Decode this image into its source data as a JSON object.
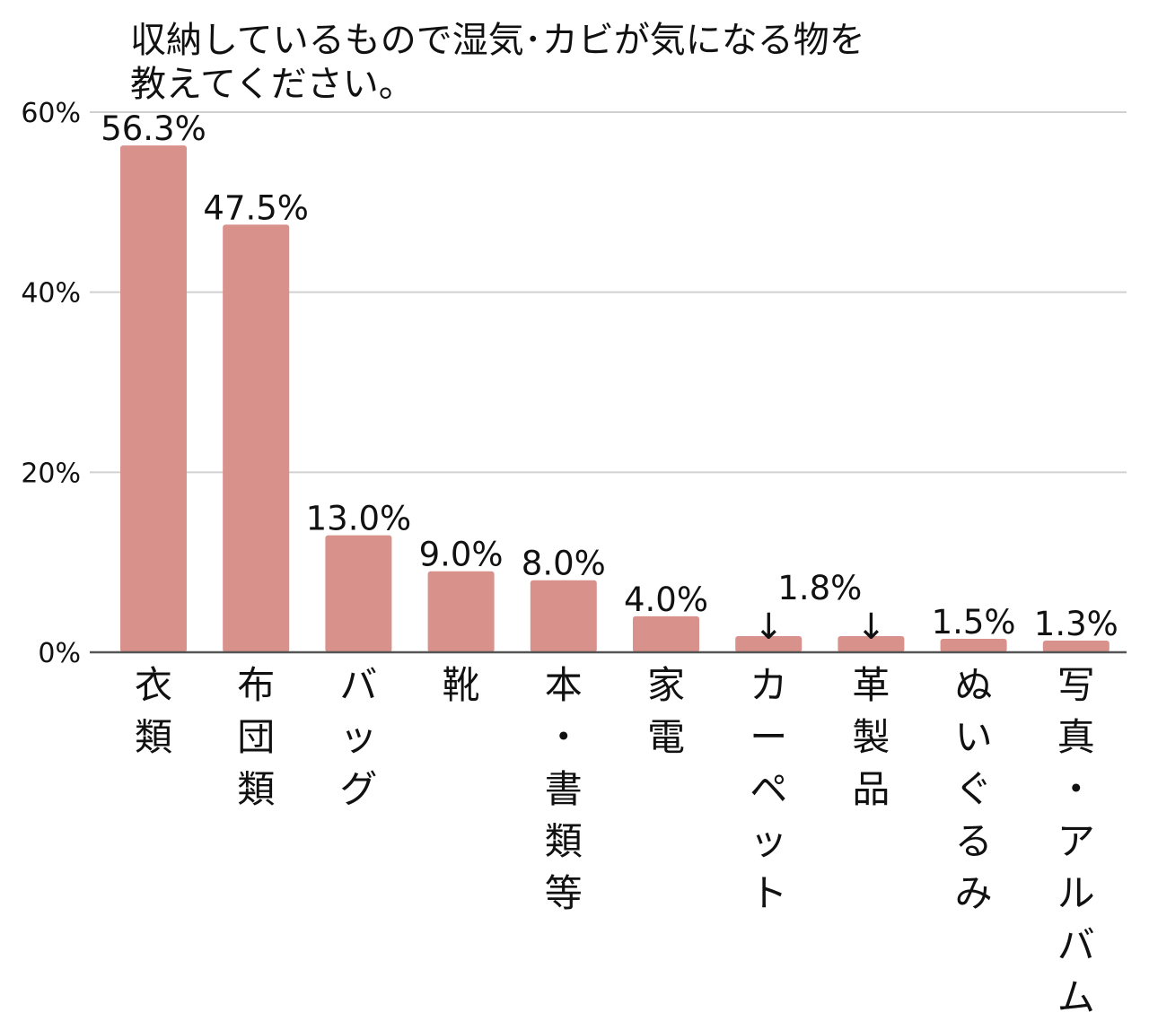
{
  "chart_data": {
    "type": "bar",
    "title_lines": [
      "収納しているもので湿気･カビが気になる物を",
      "教えてください。"
    ],
    "categories": [
      "衣類",
      "布団類",
      "バッグ",
      "靴",
      "本・書類等",
      "家電",
      "カーペット",
      "革製品",
      "ぬいぐるみ",
      "写真・アルバム"
    ],
    "values": [
      56.3,
      47.5,
      13.0,
      9.0,
      8.0,
      4.0,
      1.8,
      1.8,
      1.5,
      1.3
    ],
    "value_labels": [
      "56.3%",
      "47.5%",
      "13.0%",
      "9.0%",
      "8.0%",
      "4.0%",
      "",
      "",
      "1.5%",
      "1.3%"
    ],
    "shared_label": {
      "text": "1.8%",
      "arrow": "↓",
      "applies_to": [
        6,
        7
      ]
    },
    "y_ticks": [
      0,
      20,
      40,
      60
    ],
    "y_tick_labels": [
      "0%",
      "20%",
      "40%",
      "60%"
    ],
    "ylim": [
      0,
      60
    ],
    "xlabel": "",
    "ylabel": "",
    "grid": true,
    "bar_color": "#d9918b"
  }
}
